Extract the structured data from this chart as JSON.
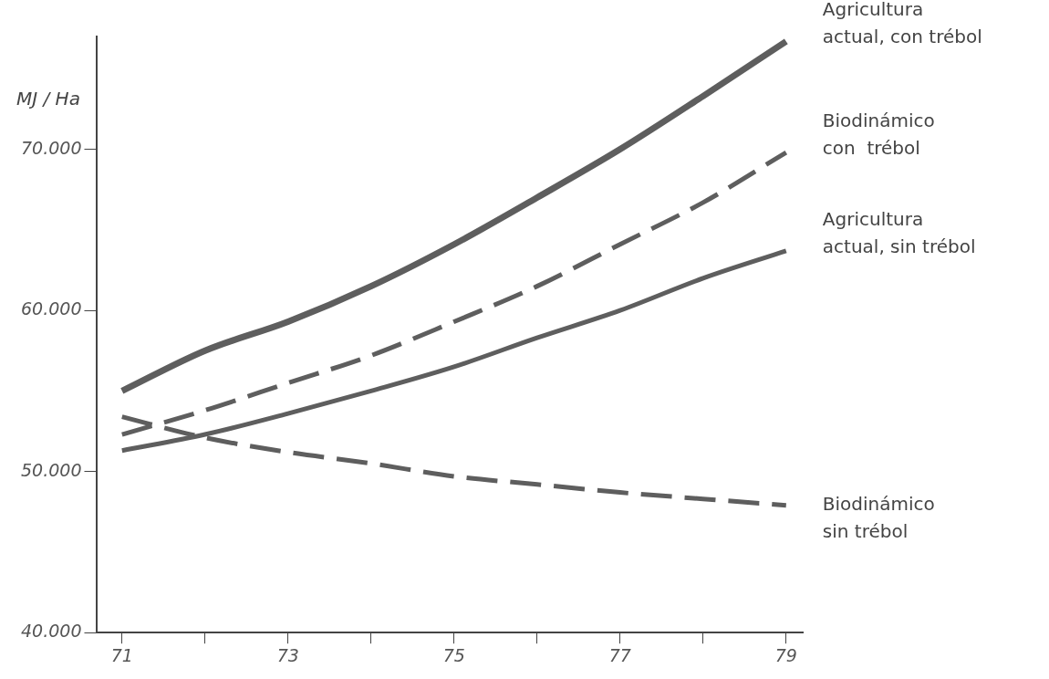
{
  "chart_data": {
    "type": "line",
    "ylabel": "MJ / Ha",
    "x": [
      71,
      72,
      73,
      74,
      75,
      76,
      77,
      78,
      79
    ],
    "xlim": [
      70.7,
      79.2
    ],
    "xticks": [
      71,
      {
        "value": 72,
        "label": null
      },
      73,
      {
        "value": 74,
        "label": null
      },
      75,
      {
        "value": 76,
        "label": null
      },
      77,
      {
        "value": 78,
        "label": null
      },
      79
    ],
    "ylim": [
      40000,
      77000
    ],
    "yticks": [
      {
        "value": 40000,
        "label": "40.000"
      },
      {
        "value": 50000,
        "label": "50.000"
      },
      {
        "value": 60000,
        "label": "60.000"
      },
      {
        "value": 70000,
        "label": "70.000"
      }
    ],
    "grid": false,
    "legend": false,
    "marker": "none",
    "series": [
      {
        "name": "Agricultura\nactual, con trébol",
        "color": "#5e5e5e",
        "line_style": "solid",
        "values": [
          55000,
          57500,
          59300,
          61500,
          64100,
          67000,
          70000,
          73300,
          76700
        ]
      },
      {
        "name": "Biodinámico\ncon  trébol",
        "color": "#5e5e5e",
        "line_style": "dashed",
        "values": [
          52300,
          53800,
          55500,
          57200,
          59300,
          61500,
          64100,
          66700,
          69800
        ]
      },
      {
        "name": "Agricultura\nactual, sin trébol",
        "color": "#5e5e5e",
        "line_style": "solid",
        "values": [
          51300,
          52300,
          53600,
          55000,
          56500,
          58300,
          60000,
          62000,
          63700
        ]
      },
      {
        "name": "Biodinámico\nsin trébol",
        "color": "#5e5e5e",
        "line_style": "dashed",
        "values": [
          53400,
          52100,
          51200,
          50500,
          49700,
          49200,
          48700,
          48300,
          47900
        ]
      }
    ]
  }
}
